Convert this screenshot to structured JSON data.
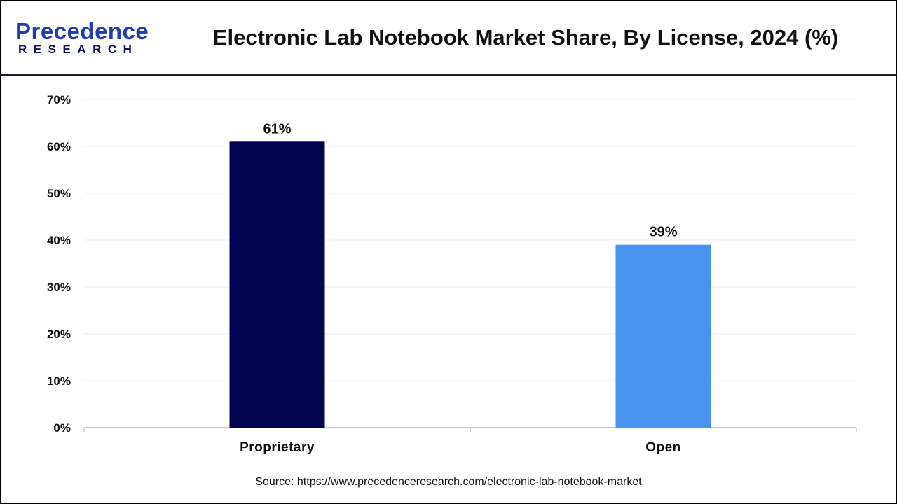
{
  "header": {
    "logo_top": "Precedence",
    "logo_bottom": "RESEARCH",
    "title": "Electronic Lab Notebook Market Share, By License, 2024 (%)"
  },
  "chart_data": {
    "type": "bar",
    "categories": [
      "Proprietary",
      "Open"
    ],
    "values": [
      61,
      39
    ],
    "data_labels": [
      "61%",
      "39%"
    ],
    "colors": [
      "#020452",
      "#4793ef"
    ],
    "xlabel": "",
    "ylabel": "",
    "ylim": [
      0,
      70
    ],
    "yticks": [
      "0%",
      "10%",
      "20%",
      "30%",
      "40%",
      "50%",
      "60%",
      "70%"
    ],
    "grid": true,
    "legend": "none"
  },
  "footer": {
    "source": "Source: https://www.precedenceresearch.com/electronic-lab-notebook-market"
  }
}
